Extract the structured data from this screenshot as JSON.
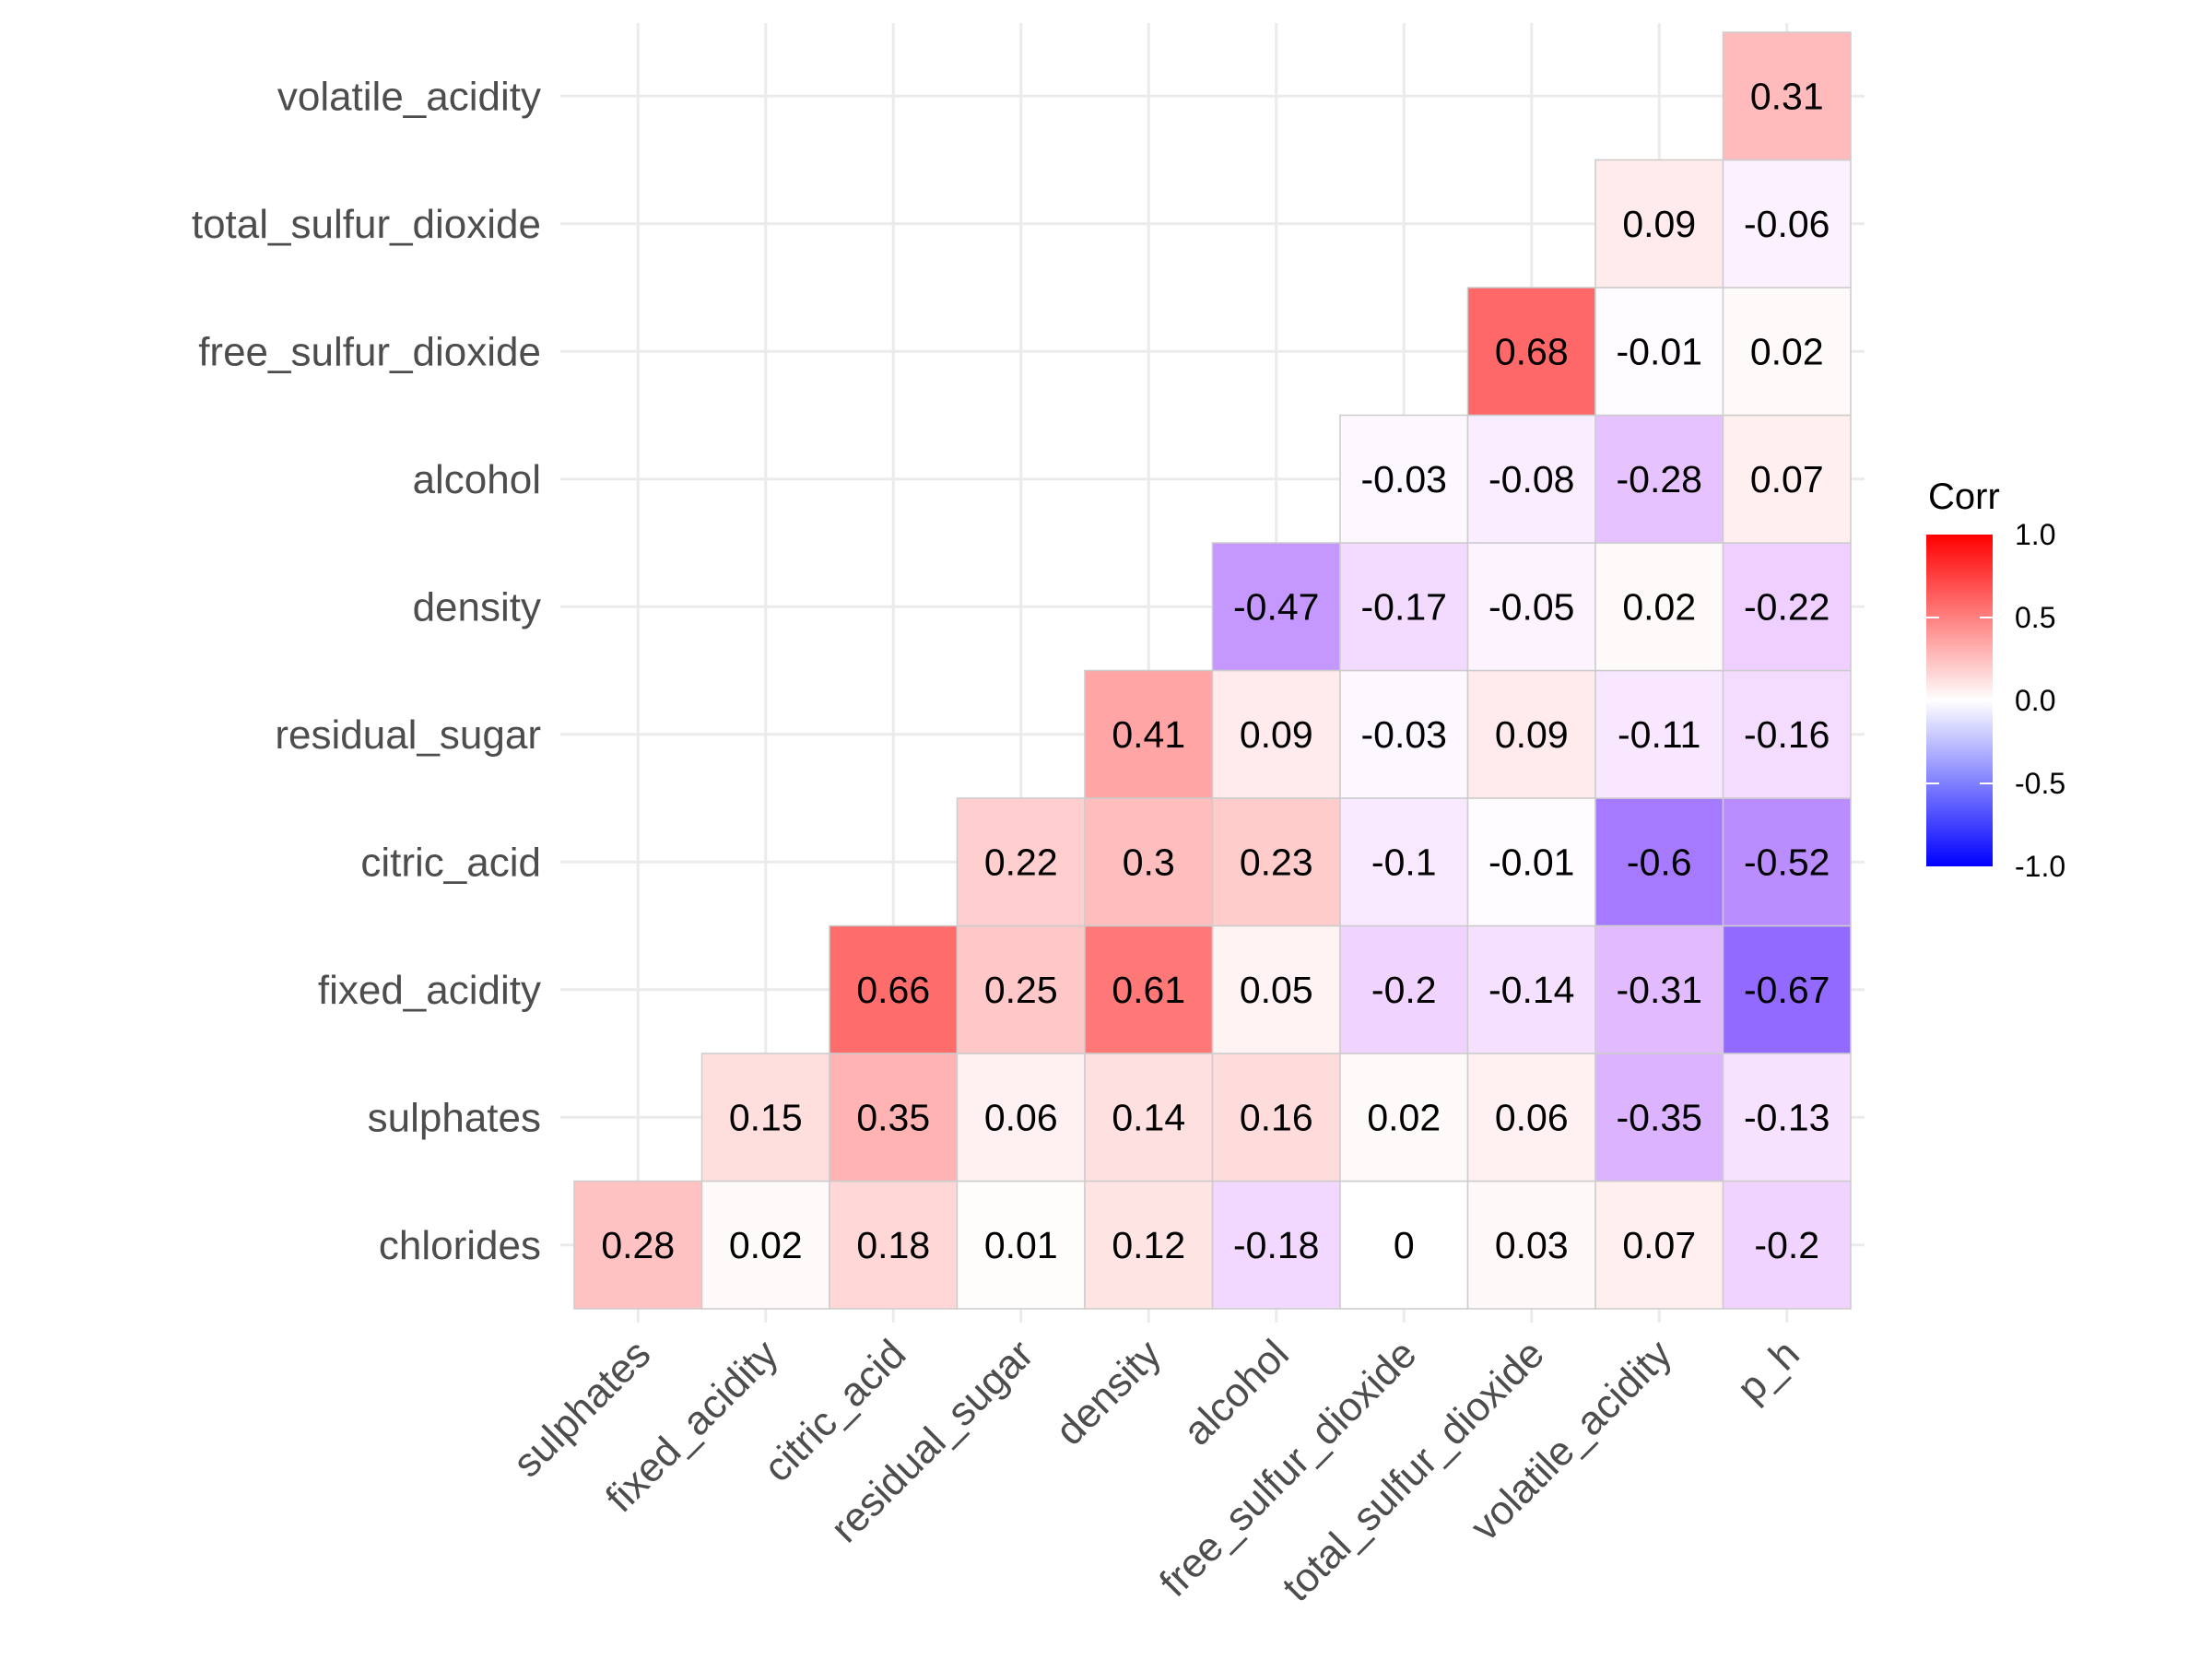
{
  "chart_data": {
    "type": "heatmap",
    "title": "",
    "xlabel": "",
    "ylabel": "",
    "x_categories": [
      "sulphates",
      "fixed_acidity",
      "citric_acid",
      "residual_sugar",
      "density",
      "alcohol",
      "free_sulfur_dioxide",
      "total_sulfur_dioxide",
      "volatile_acidity",
      "p_h"
    ],
    "y_categories": [
      "chlorides",
      "sulphates",
      "fixed_acidity",
      "citric_acid",
      "residual_sugar",
      "density",
      "alcohol",
      "free_sulfur_dioxide",
      "total_sulfur_dioxide",
      "volatile_acidity"
    ],
    "values": [
      [
        0.28,
        0.02,
        0.18,
        0.01,
        0.12,
        -0.18,
        0,
        0.03,
        0.07,
        -0.2
      ],
      [
        null,
        0.15,
        0.35,
        0.06,
        0.14,
        0.16,
        0.02,
        0.06,
        -0.35,
        -0.13
      ],
      [
        null,
        null,
        0.66,
        0.25,
        0.61,
        0.05,
        -0.2,
        -0.14,
        -0.31,
        -0.67
      ],
      [
        null,
        null,
        null,
        0.22,
        0.3,
        0.23,
        -0.1,
        -0.01,
        -0.6,
        -0.52
      ],
      [
        null,
        null,
        null,
        null,
        0.41,
        0.09,
        -0.03,
        0.09,
        -0.11,
        -0.16
      ],
      [
        null,
        null,
        null,
        null,
        null,
        -0.47,
        -0.17,
        -0.05,
        0.02,
        -0.22
      ],
      [
        null,
        null,
        null,
        null,
        null,
        null,
        -0.03,
        -0.08,
        -0.28,
        0.07
      ],
      [
        null,
        null,
        null,
        null,
        null,
        null,
        null,
        0.68,
        -0.01,
        0.02
      ],
      [
        null,
        null,
        null,
        null,
        null,
        null,
        null,
        null,
        0.09,
        -0.06
      ],
      [
        null,
        null,
        null,
        null,
        null,
        null,
        null,
        null,
        null,
        0.31
      ]
    ],
    "labels": [
      [
        "0.28",
        "0.02",
        "0.18",
        "0.01",
        "0.12",
        "-0.18",
        "0",
        "0.03",
        "0.07",
        "-0.2"
      ],
      [
        null,
        "0.15",
        "0.35",
        "0.06",
        "0.14",
        "0.16",
        "0.02",
        "0.06",
        "-0.35",
        "-0.13"
      ],
      [
        null,
        null,
        "0.66",
        "0.25",
        "0.61",
        "0.05",
        "-0.2",
        "-0.14",
        "-0.31",
        "-0.67"
      ],
      [
        null,
        null,
        null,
        "0.22",
        "0.3",
        "0.23",
        "-0.1",
        "-0.01",
        "-0.6",
        "-0.52"
      ],
      [
        null,
        null,
        null,
        null,
        "0.41",
        "0.09",
        "-0.03",
        "0.09",
        "-0.11",
        "-0.16"
      ],
      [
        null,
        null,
        null,
        null,
        null,
        "-0.47",
        "-0.17",
        "-0.05",
        "0.02",
        "-0.22"
      ],
      [
        null,
        null,
        null,
        null,
        null,
        null,
        "-0.03",
        "-0.08",
        "-0.28",
        "0.07"
      ],
      [
        null,
        null,
        null,
        null,
        null,
        null,
        null,
        "0.68",
        "-0.01",
        "0.02"
      ],
      [
        null,
        null,
        null,
        null,
        null,
        null,
        null,
        null,
        "0.09",
        "-0.06"
      ],
      [
        null,
        null,
        null,
        null,
        null,
        null,
        null,
        null,
        null,
        "0.31"
      ]
    ],
    "color_scale": {
      "low": "#0000FF",
      "mid": "#FFFFFF",
      "high": "#FF0000",
      "limits": [
        -1,
        1
      ]
    },
    "legend": {
      "title": "Corr",
      "ticks": [
        "1.0",
        "0.5",
        "0.0",
        "-0.5",
        "-1.0"
      ],
      "tick_values": [
        1.0,
        0.5,
        0.0,
        -0.5,
        -1.0
      ],
      "placement": "right"
    },
    "grid": true,
    "colors": {
      "grid": "#EBEBEB",
      "tile_border": "#CCCCCC",
      "axis_text": "#4D4D4D"
    }
  }
}
